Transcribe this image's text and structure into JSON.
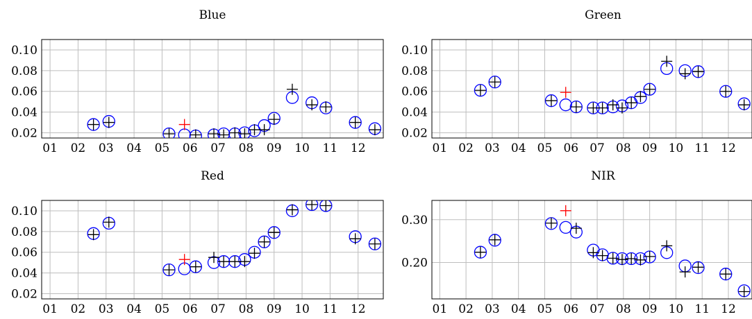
{
  "chart_data": [
    {
      "type": "scatter",
      "title": "Blue",
      "x_ticks": [
        "01",
        "02",
        "03",
        "04",
        "05",
        "06",
        "07",
        "08",
        "09",
        "10",
        "11",
        "12"
      ],
      "y_ticks": [
        "0.02",
        "0.04",
        "0.06",
        "0.08",
        "0.10"
      ],
      "xlim": [
        0.7,
        12.9
      ],
      "ylim": [
        0.015,
        0.11
      ],
      "grid": true,
      "series": [
        {
          "marker": "circle",
          "color": "#0000ff",
          "points": [
            [
              2.55,
              0.028
            ],
            [
              3.1,
              0.031
            ],
            [
              5.25,
              0.019
            ],
            [
              5.8,
              0.018
            ],
            [
              6.2,
              0.017
            ],
            [
              6.85,
              0.018
            ],
            [
              7.2,
              0.019
            ],
            [
              7.6,
              0.019
            ],
            [
              7.95,
              0.02
            ],
            [
              8.3,
              0.022
            ],
            [
              8.65,
              0.027
            ],
            [
              9.0,
              0.034
            ],
            [
              9.65,
              0.054
            ],
            [
              10.35,
              0.049
            ],
            [
              10.85,
              0.044
            ],
            [
              11.9,
              0.03
            ],
            [
              12.6,
              0.024
            ]
          ]
        },
        {
          "marker": "plus",
          "color": "#000000",
          "points": [
            [
              2.55,
              0.028
            ],
            [
              3.1,
              0.03
            ],
            [
              5.25,
              0.019
            ],
            [
              6.2,
              0.018
            ],
            [
              6.85,
              0.019
            ],
            [
              7.2,
              0.018
            ],
            [
              7.6,
              0.02
            ],
            [
              7.95,
              0.019
            ],
            [
              8.3,
              0.023
            ],
            [
              8.65,
              0.023
            ],
            [
              9.0,
              0.033
            ],
            [
              9.65,
              0.062
            ],
            [
              10.35,
              0.047
            ],
            [
              10.85,
              0.045
            ],
            [
              11.9,
              0.03
            ],
            [
              12.6,
              0.023
            ]
          ]
        },
        {
          "marker": "plus",
          "color": "#ff0000",
          "points": [
            [
              5.8,
              0.028
            ]
          ]
        }
      ]
    },
    {
      "type": "scatter",
      "title": "Green",
      "x_ticks": [
        "01",
        "02",
        "03",
        "04",
        "05",
        "06",
        "07",
        "08",
        "09",
        "10",
        "11",
        "12"
      ],
      "y_ticks": [
        "0.02",
        "0.04",
        "0.06",
        "0.08",
        "0.10"
      ],
      "xlim": [
        0.7,
        12.9
      ],
      "ylim": [
        0.015,
        0.11
      ],
      "grid": true,
      "series": [
        {
          "marker": "circle",
          "color": "#0000ff",
          "points": [
            [
              2.55,
              0.061
            ],
            [
              3.1,
              0.069
            ],
            [
              5.25,
              0.051
            ],
            [
              5.8,
              0.047
            ],
            [
              6.2,
              0.045
            ],
            [
              6.85,
              0.044
            ],
            [
              7.2,
              0.044
            ],
            [
              7.6,
              0.045
            ],
            [
              7.95,
              0.046
            ],
            [
              8.3,
              0.049
            ],
            [
              8.65,
              0.054
            ],
            [
              9.0,
              0.062
            ],
            [
              9.65,
              0.082
            ],
            [
              10.35,
              0.08
            ],
            [
              10.85,
              0.079
            ],
            [
              11.9,
              0.06
            ],
            [
              12.6,
              0.048
            ]
          ]
        },
        {
          "marker": "plus",
          "color": "#000000",
          "points": [
            [
              2.55,
              0.061
            ],
            [
              3.1,
              0.069
            ],
            [
              5.25,
              0.051
            ],
            [
              6.2,
              0.045
            ],
            [
              6.85,
              0.044
            ],
            [
              7.2,
              0.044
            ],
            [
              7.6,
              0.047
            ],
            [
              7.95,
              0.044
            ],
            [
              8.3,
              0.049
            ],
            [
              8.65,
              0.055
            ],
            [
              9.0,
              0.062
            ],
            [
              9.65,
              0.089
            ],
            [
              10.35,
              0.077
            ],
            [
              10.85,
              0.079
            ],
            [
              11.9,
              0.06
            ],
            [
              12.6,
              0.047
            ]
          ]
        },
        {
          "marker": "plus",
          "color": "#ff0000",
          "points": [
            [
              5.8,
              0.059
            ]
          ]
        }
      ]
    },
    {
      "type": "scatter",
      "title": "Red",
      "x_ticks": [
        "01",
        "02",
        "03",
        "04",
        "05",
        "06",
        "07",
        "08",
        "09",
        "10",
        "11",
        "12"
      ],
      "y_ticks": [
        "0.02",
        "0.04",
        "0.06",
        "0.08",
        "0.10"
      ],
      "xlim": [
        0.7,
        12.9
      ],
      "ylim": [
        0.015,
        0.11
      ],
      "grid": true,
      "series": [
        {
          "marker": "circle",
          "color": "#0000ff",
          "points": [
            [
              2.55,
              0.078
            ],
            [
              3.1,
              0.088
            ],
            [
              5.25,
              0.043
            ],
            [
              5.8,
              0.044
            ],
            [
              6.2,
              0.046
            ],
            [
              6.85,
              0.05
            ],
            [
              7.2,
              0.051
            ],
            [
              7.6,
              0.051
            ],
            [
              7.95,
              0.053
            ],
            [
              8.3,
              0.06
            ],
            [
              8.65,
              0.07
            ],
            [
              9.0,
              0.079
            ],
            [
              9.65,
              0.1
            ],
            [
              10.35,
              0.106
            ],
            [
              10.85,
              0.105
            ],
            [
              11.9,
              0.075
            ],
            [
              12.6,
              0.068
            ]
          ]
        },
        {
          "marker": "plus",
          "color": "#000000",
          "points": [
            [
              2.55,
              0.077
            ],
            [
              3.1,
              0.089
            ],
            [
              5.25,
              0.043
            ],
            [
              6.2,
              0.046
            ],
            [
              6.85,
              0.055
            ],
            [
              7.2,
              0.051
            ],
            [
              7.6,
              0.051
            ],
            [
              7.95,
              0.051
            ],
            [
              8.3,
              0.059
            ],
            [
              8.65,
              0.07
            ],
            [
              9.0,
              0.079
            ],
            [
              9.65,
              0.101
            ],
            [
              10.35,
              0.106
            ],
            [
              10.85,
              0.105
            ],
            [
              11.9,
              0.073
            ],
            [
              12.6,
              0.068
            ]
          ]
        },
        {
          "marker": "plus",
          "color": "#ff0000",
          "points": [
            [
              5.8,
              0.053
            ]
          ]
        }
      ]
    },
    {
      "type": "scatter",
      "title": "NIR",
      "x_ticks": [
        "01",
        "02",
        "03",
        "04",
        "05",
        "06",
        "07",
        "08",
        "09",
        "10",
        "11",
        "12"
      ],
      "y_ticks": [
        "0.20",
        "0.30"
      ],
      "y_tick_values": [
        0.2,
        0.3
      ],
      "xlim": [
        0.7,
        12.9
      ],
      "ylim": [
        0.115,
        0.345
      ],
      "grid": true,
      "series": [
        {
          "marker": "circle",
          "color": "#0000ff",
          "points": [
            [
              2.55,
              0.224
            ],
            [
              3.1,
              0.252
            ],
            [
              5.25,
              0.291
            ],
            [
              5.8,
              0.282
            ],
            [
              6.2,
              0.271
            ],
            [
              6.85,
              0.229
            ],
            [
              7.2,
              0.218
            ],
            [
              7.6,
              0.21
            ],
            [
              7.95,
              0.209
            ],
            [
              8.3,
              0.209
            ],
            [
              8.65,
              0.209
            ],
            [
              9.0,
              0.213
            ],
            [
              9.65,
              0.223
            ],
            [
              10.35,
              0.192
            ],
            [
              10.85,
              0.188
            ],
            [
              11.9,
              0.173
            ],
            [
              12.6,
              0.134
            ]
          ]
        },
        {
          "marker": "plus",
          "color": "#000000",
          "points": [
            [
              2.55,
              0.224
            ],
            [
              3.1,
              0.253
            ],
            [
              5.25,
              0.292
            ],
            [
              6.2,
              0.28
            ],
            [
              6.85,
              0.223
            ],
            [
              7.2,
              0.216
            ],
            [
              7.6,
              0.21
            ],
            [
              7.95,
              0.207
            ],
            [
              8.3,
              0.209
            ],
            [
              8.65,
              0.206
            ],
            [
              9.0,
              0.214
            ],
            [
              9.65,
              0.239
            ],
            [
              10.35,
              0.178
            ],
            [
              10.85,
              0.189
            ],
            [
              11.9,
              0.173
            ],
            [
              12.6,
              0.132
            ]
          ]
        },
        {
          "marker": "plus",
          "color": "#ff0000",
          "points": [
            [
              5.8,
              0.321
            ]
          ]
        }
      ]
    }
  ]
}
